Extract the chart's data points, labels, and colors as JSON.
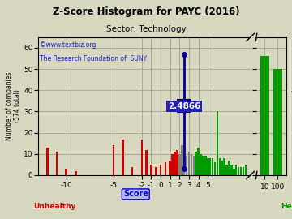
{
  "title": "Z-Score Histogram for PAYC (2016)",
  "subtitle": "Sector: Technology",
  "watermark1": "©www.textbiz.org",
  "watermark2": "The Research Foundation of  SUNY",
  "zscore_value": 2.4866,
  "zscore_label": "2.4866",
  "unhealthy_label": "Unhealthy",
  "healthy_label": "Healthy",
  "background_color": "#d8d8c0",
  "bars_main": [
    [
      -12,
      13,
      "#cc0000"
    ],
    [
      -11,
      11,
      "#cc0000"
    ],
    [
      -10,
      3,
      "#cc0000"
    ],
    [
      -9,
      2,
      "#cc0000"
    ],
    [
      -5,
      14,
      "#cc0000"
    ],
    [
      -4,
      17,
      "#cc0000"
    ],
    [
      -3,
      4,
      "#cc0000"
    ],
    [
      -2,
      17,
      "#cc0000"
    ],
    [
      -1.5,
      12,
      "#cc0000"
    ],
    [
      -1,
      5,
      "#cc0000"
    ],
    [
      -0.5,
      4,
      "#cc0000"
    ],
    [
      0,
      5,
      "#cc0000"
    ],
    [
      0.5,
      6,
      "#cc0000"
    ],
    [
      1,
      7,
      "#cc0000"
    ],
    [
      1.25,
      10,
      "#cc0000"
    ],
    [
      1.5,
      11,
      "#cc0000"
    ],
    [
      1.75,
      12,
      "#cc0000"
    ],
    [
      2,
      10,
      "#808080"
    ],
    [
      2.25,
      14,
      "#808080"
    ],
    [
      2.5,
      10,
      "#808080"
    ],
    [
      2.75,
      9,
      "#808080"
    ],
    [
      3,
      11,
      "#808080"
    ],
    [
      3.25,
      10,
      "#808080"
    ],
    [
      3.5,
      9,
      "#808080"
    ],
    [
      3.75,
      11,
      "#009900"
    ],
    [
      4,
      13,
      "#009900"
    ],
    [
      4.25,
      10,
      "#009900"
    ],
    [
      4.5,
      9,
      "#009900"
    ],
    [
      4.75,
      9,
      "#009900"
    ],
    [
      5,
      8,
      "#009900"
    ],
    [
      5.25,
      8,
      "#009900"
    ],
    [
      5.5,
      8,
      "#009900"
    ],
    [
      5.75,
      6,
      "#009900"
    ],
    [
      6,
      30,
      "#009900"
    ],
    [
      6.25,
      8,
      "#009900"
    ],
    [
      6.5,
      7,
      "#009900"
    ],
    [
      6.75,
      8,
      "#009900"
    ],
    [
      7,
      5,
      "#009900"
    ],
    [
      7.25,
      7,
      "#009900"
    ],
    [
      7.5,
      5,
      "#009900"
    ],
    [
      7.75,
      3,
      "#009900"
    ],
    [
      8,
      5,
      "#009900"
    ],
    [
      8.25,
      4,
      "#009900"
    ],
    [
      8.5,
      4,
      "#009900"
    ],
    [
      8.75,
      4,
      "#009900"
    ],
    [
      9,
      5,
      "#009900"
    ]
  ],
  "bars_right": [
    [
      0,
      56,
      "#009900"
    ],
    [
      1,
      50,
      "#009900"
    ]
  ],
  "xticks_main": [
    -10,
    -5,
    -2,
    -1,
    0,
    1,
    2,
    3,
    4,
    5
  ],
  "xticks_right": [
    0,
    1
  ],
  "xtick_labels_right": [
    "10",
    "100"
  ],
  "yticks": [
    0,
    10,
    20,
    30,
    40,
    50,
    60
  ],
  "ylim": [
    0,
    65
  ],
  "xlim_main": [
    -13.0,
    9.5
  ],
  "grid_color": "#999988",
  "title_color": "#000000",
  "subtitle_color": "#000000",
  "watermark_color": "#1a1acc",
  "zscore_line_color": "#00008b",
  "zscore_box_facecolor": "#2222aa",
  "zscore_text_color": "#ffffff",
  "unhealthy_color": "#cc0000",
  "healthy_color": "#009900",
  "bar_width": 0.22
}
